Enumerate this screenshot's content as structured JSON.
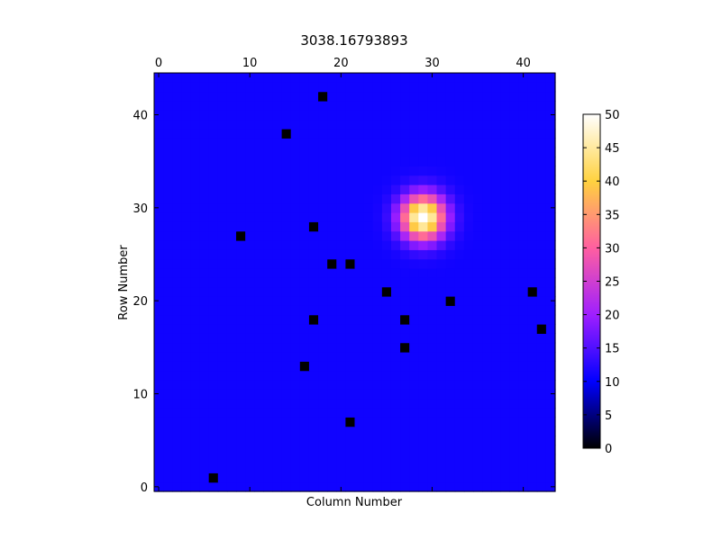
{
  "chart_data": {
    "type": "heatmap",
    "title": "3038.16793893",
    "xlabel": "Column Number",
    "ylabel": "Row Number",
    "grid": false,
    "n_cols": 44,
    "n_rows": 45,
    "xlim": [
      -0.5,
      43.5
    ],
    "ylim": [
      -0.5,
      44.5
    ],
    "x_ticks": [
      0,
      10,
      20,
      30,
      40
    ],
    "x_tick_labels": [
      "0",
      "10",
      "20",
      "30",
      "40"
    ],
    "x_tick_position": "top",
    "y_ticks": [
      0,
      10,
      20,
      30,
      40
    ],
    "y_tick_labels": [
      "0",
      "10",
      "20",
      "30",
      "40"
    ],
    "background_value": 11,
    "source": {
      "col": 29,
      "row": 29,
      "peak": 51,
      "sigma": 1.7
    },
    "masked_pixels": [
      {
        "col": 18,
        "row": 42
      },
      {
        "col": 14,
        "row": 38
      },
      {
        "col": 17,
        "row": 28
      },
      {
        "col": 9,
        "row": 27
      },
      {
        "col": 19,
        "row": 24
      },
      {
        "col": 21,
        "row": 24
      },
      {
        "col": 25,
        "row": 21
      },
      {
        "col": 41,
        "row": 21
      },
      {
        "col": 32,
        "row": 20
      },
      {
        "col": 17,
        "row": 18
      },
      {
        "col": 27,
        "row": 18
      },
      {
        "col": 42,
        "row": 17
      },
      {
        "col": 27,
        "row": 15
      },
      {
        "col": 16,
        "row": 13
      },
      {
        "col": 21,
        "row": 7
      },
      {
        "col": 6,
        "row": 1
      }
    ],
    "masked_value": 0,
    "colorbar": {
      "label": "",
      "vmin": 0,
      "vmax": 50,
      "ticks": [
        0,
        5,
        10,
        15,
        20,
        25,
        30,
        35,
        40,
        45,
        50
      ],
      "tick_labels": [
        "0",
        "5",
        "10",
        "15",
        "20",
        "25",
        "30",
        "35",
        "40",
        "45",
        "50"
      ],
      "colormap": "gnuplot2",
      "colormap_stops": [
        "#000000",
        "#0000ff",
        "#9f1fff",
        "#ff5fa0",
        "#ffd23f",
        "#ffffff"
      ]
    }
  }
}
